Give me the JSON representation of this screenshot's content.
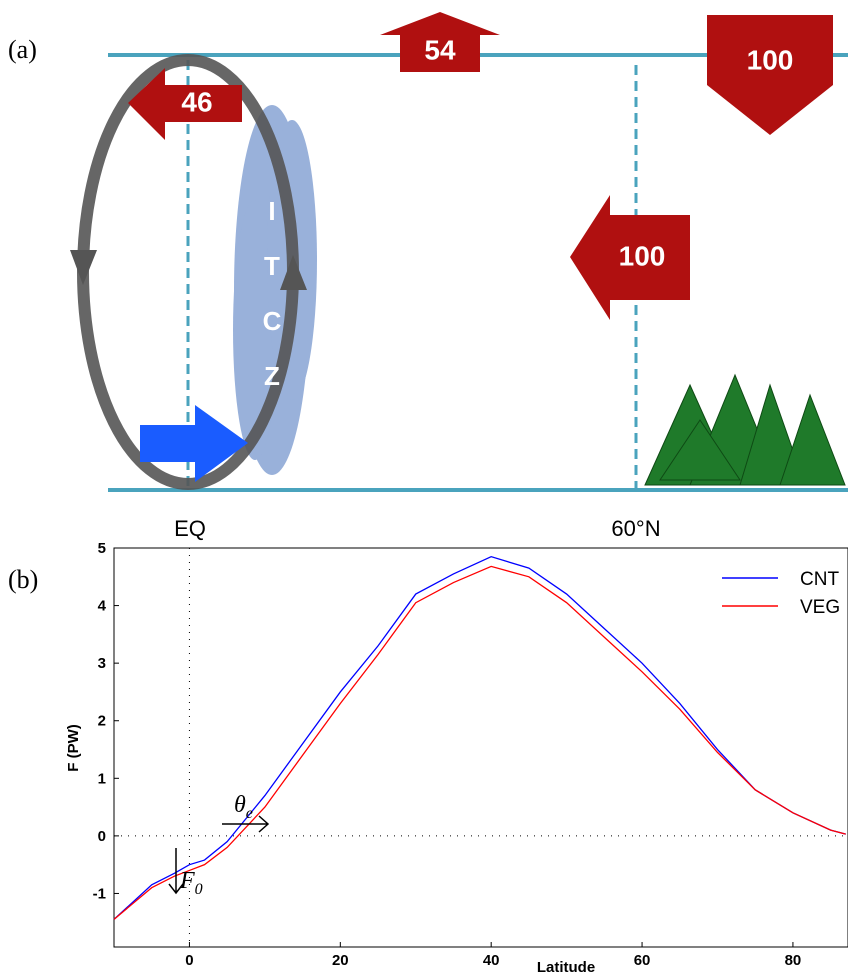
{
  "diagram": {
    "label": "(a)",
    "arrows": {
      "top_up": "54",
      "top_down": "100",
      "upper_left": "46",
      "mid_left": "100"
    },
    "itcz": [
      "I",
      "T",
      "C",
      "Z"
    ],
    "locations": [
      "EQ",
      "60°N"
    ]
  },
  "chart_data": {
    "type": "line",
    "label": "(b)",
    "x_label": "Latitude",
    "y_label": "F (PW)",
    "x": [
      -10,
      -5,
      -2,
      0,
      2,
      5,
      10,
      15,
      20,
      25,
      30,
      35,
      40,
      45,
      50,
      55,
      60,
      65,
      70,
      75,
      80,
      85,
      87
    ],
    "series": [
      {
        "name": "CNT",
        "color": "#0000ff",
        "values": [
          -1.45,
          -0.85,
          -0.65,
          -0.5,
          -0.42,
          -0.1,
          0.7,
          1.6,
          2.5,
          3.3,
          4.2,
          4.55,
          4.85,
          4.65,
          4.2,
          3.6,
          3.0,
          2.3,
          1.5,
          0.8,
          0.4,
          0.1,
          0.03
        ]
      },
      {
        "name": "VEG",
        "color": "#ff0000",
        "values": [
          -1.45,
          -0.9,
          -0.7,
          -0.6,
          -0.5,
          -0.2,
          0.5,
          1.4,
          2.3,
          3.15,
          4.05,
          4.4,
          4.68,
          4.5,
          4.05,
          3.45,
          2.85,
          2.2,
          1.45,
          0.8,
          0.4,
          0.1,
          0.03
        ]
      }
    ],
    "xlim": [
      -10,
      87.3
    ],
    "ylim": [
      -1.93,
      5
    ],
    "xticks": [
      0,
      20,
      40,
      60,
      80
    ],
    "yticks": [
      -1,
      0,
      1,
      2,
      3,
      4,
      5
    ],
    "annotations": [
      {
        "symbol": "θ",
        "subscript": "e"
      },
      {
        "symbol": "F",
        "subscript": "0"
      }
    ],
    "legend": "upper right"
  }
}
